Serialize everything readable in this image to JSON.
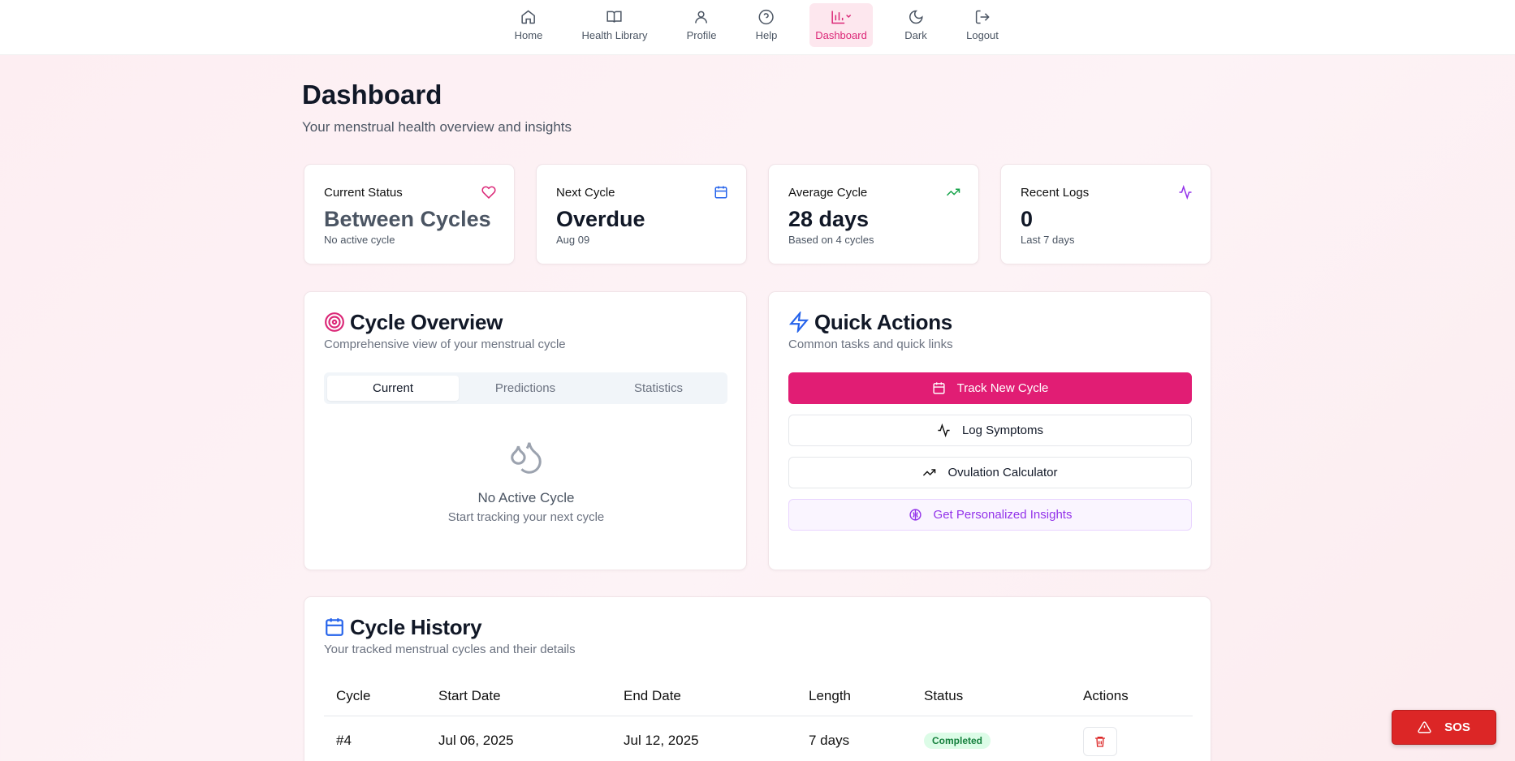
{
  "nav": {
    "items": [
      "Home",
      "Health Library",
      "Profile",
      "Help",
      "Dashboard",
      "Dark",
      "Logout"
    ]
  },
  "header": {
    "title": "Dashboard",
    "subtitle": "Your menstrual health overview and insights"
  },
  "stats": [
    {
      "label": "Current Status",
      "value": "Between Cycles",
      "sub": "No active cycle"
    },
    {
      "label": "Next Cycle",
      "value": "Overdue",
      "sub": "Aug 09"
    },
    {
      "label": "Average Cycle",
      "value": "28 days",
      "sub": "Based on 4 cycles"
    },
    {
      "label": "Recent Logs",
      "value": "0",
      "sub": "Last 7 days"
    }
  ],
  "cycle_overview": {
    "title": "Cycle Overview",
    "subtitle": "Comprehensive view of your menstrual cycle",
    "tabs": [
      "Current",
      "Predictions",
      "Statistics"
    ],
    "empty_title": "No Active Cycle",
    "empty_text": "Start tracking your next cycle"
  },
  "quick_actions": {
    "title": "Quick Actions",
    "subtitle": "Common tasks and quick links",
    "buttons": [
      "Track New Cycle",
      "Log Symptoms",
      "Ovulation Calculator",
      "Get Personalized Insights"
    ]
  },
  "cycle_history": {
    "title": "Cycle History",
    "subtitle": "Your tracked menstrual cycles and their details",
    "table": {
      "headers": [
        "Cycle",
        "Start Date",
        "End Date",
        "Length",
        "Status",
        "Actions"
      ],
      "rows": [
        [
          "#4",
          "Jul 06, 2025",
          "Jul 12, 2025",
          "7 days",
          "Completed"
        ]
      ]
    }
  },
  "sos": "SOS"
}
